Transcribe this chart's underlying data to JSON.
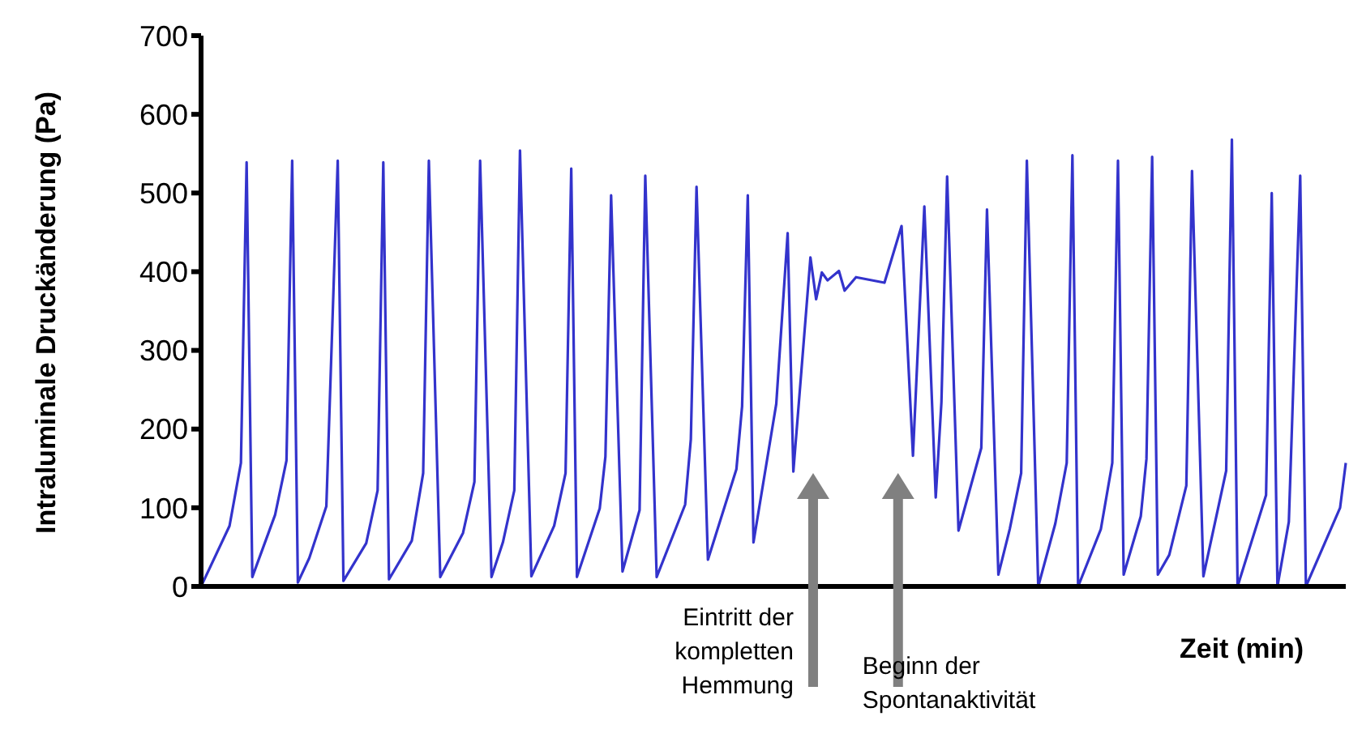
{
  "chart_data": {
    "type": "line",
    "ylabel": "Intraluminale Druckänderung (Pa)",
    "xlabel": "Zeit (min)",
    "categories": [
      null,
      null,
      null,
      null,
      null,
      null,
      null,
      null,
      null,
      null,
      null,
      null,
      null,
      null,
      null,
      null,
      null,
      null,
      null,
      null,
      null,
      null,
      null,
      null,
      null,
      null,
      null,
      null,
      null,
      null,
      null,
      null,
      null,
      null,
      null,
      null,
      null,
      null,
      null,
      null,
      null,
      null,
      null,
      null,
      null,
      null,
      null,
      null,
      null,
      null,
      null,
      null,
      null,
      null,
      null,
      null,
      null,
      null,
      null,
      null,
      null,
      null,
      null,
      null,
      null,
      null,
      null,
      null,
      null,
      null,
      null,
      null,
      null,
      null,
      null,
      null,
      null,
      null,
      null,
      null,
      null,
      null,
      null,
      null,
      null,
      null,
      null,
      null,
      null,
      null,
      null,
      null,
      null,
      null,
      null,
      null,
      null,
      null,
      null,
      null,
      null,
      null,
      null,
      null,
      null,
      null,
      null,
      null,
      null,
      null,
      null,
      null,
      null,
      null,
      null,
      null,
      null,
      null,
      null,
      null,
      null,
      null,
      null,
      null,
      null,
      null,
      null,
      null,
      null,
      null,
      null,
      null,
      null,
      null,
      null,
      null,
      null,
      null,
      null,
      null,
      null,
      null,
      null,
      null,
      null,
      null,
      null,
      null,
      null,
      null,
      null,
      null,
      null,
      null,
      null,
      null,
      null,
      null,
      null,
      null,
      null,
      null,
      null,
      null,
      null,
      null,
      null,
      null,
      null,
      null,
      null,
      null,
      null,
      null,
      null,
      null,
      null,
      null,
      null,
      null,
      null,
      null,
      null,
      null,
      null,
      null,
      null,
      null,
      null,
      null,
      null,
      null,
      null,
      null,
      null,
      null,
      null,
      null,
      null,
      null,
      null,
      null
    ],
    "tick_labels": "y",
    "ylim": [
      0,
      700
    ],
    "yticks": [
      0,
      100,
      200,
      300,
      400,
      500,
      600,
      700
    ],
    "marker": "none",
    "line_style": "solid",
    "series": [
      {
        "color": "#3333cc",
        "values": [
          0,
          null,
          null,
          null,
          null,
          77,
          null,
          157,
          539,
          12,
          null,
          null,
          null,
          91,
          null,
          160,
          541,
          5,
          null,
          36,
          null,
          null,
          102,
          null,
          541,
          7,
          null,
          null,
          null,
          55,
          null,
          122,
          539,
          9,
          null,
          null,
          null,
          58,
          null,
          144,
          541,
          null,
          12,
          null,
          null,
          null,
          68,
          null,
          133,
          541,
          null,
          12,
          null,
          56,
          null,
          122,
          554,
          null,
          13,
          null,
          null,
          null,
          77,
          null,
          144,
          531,
          12,
          null,
          null,
          null,
          99,
          165,
          497,
          null,
          19,
          null,
          null,
          97,
          522,
          null,
          12,
          null,
          null,
          null,
          null,
          104,
          187,
          508,
          null,
          34,
          null,
          null,
          null,
          null,
          149,
          229,
          497,
          56,
          null,
          null,
          null,
          232,
          null,
          449,
          146,
          null,
          null,
          418,
          365,
          399,
          389,
          null,
          401,
          376,
          null,
          393,
          null,
          null,
          null,
          null,
          386,
          null,
          null,
          458,
          null,
          166,
          null,
          483,
          null,
          113,
          234,
          521,
          null,
          71,
          null,
          null,
          null,
          176,
          479,
          null,
          15,
          null,
          73,
          null,
          144,
          541,
          null,
          0,
          null,
          null,
          80,
          null,
          157,
          548,
          0,
          null,
          null,
          null,
          73,
          null,
          157,
          541,
          15,
          null,
          null,
          89,
          162,
          546,
          15,
          null,
          40,
          null,
          null,
          128,
          528,
          null,
          13,
          null,
          null,
          null,
          147,
          568,
          0,
          null,
          null,
          null,
          null,
          116,
          500,
          0,
          null,
          82,
          null,
          522,
          0,
          null,
          null,
          null,
          null,
          null,
          100,
          157
        ]
      }
    ],
    "annotations": [
      "Eintritt der\nkompletten\nHemmung",
      "Beginn der\nSpontanaktivität"
    ]
  }
}
